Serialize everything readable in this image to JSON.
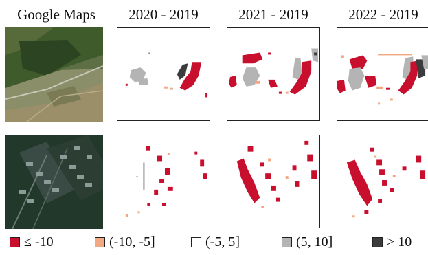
{
  "columns": [
    "Google Maps",
    "2020 - 2019",
    "2021 - 2019",
    "2022 - 2019"
  ],
  "legend": [
    {
      "label": "≤ -10",
      "color": "#c8102e"
    },
    {
      "label": "(-10,  -5]",
      "color": "#f2a882"
    },
    {
      "label": "(-5,  5]",
      "color": "#ffffff"
    },
    {
      "label": "(5,  10]",
      "color": "#b4b4b4"
    },
    {
      "label": "> 10",
      "color": "#3c3c3c"
    }
  ]
}
